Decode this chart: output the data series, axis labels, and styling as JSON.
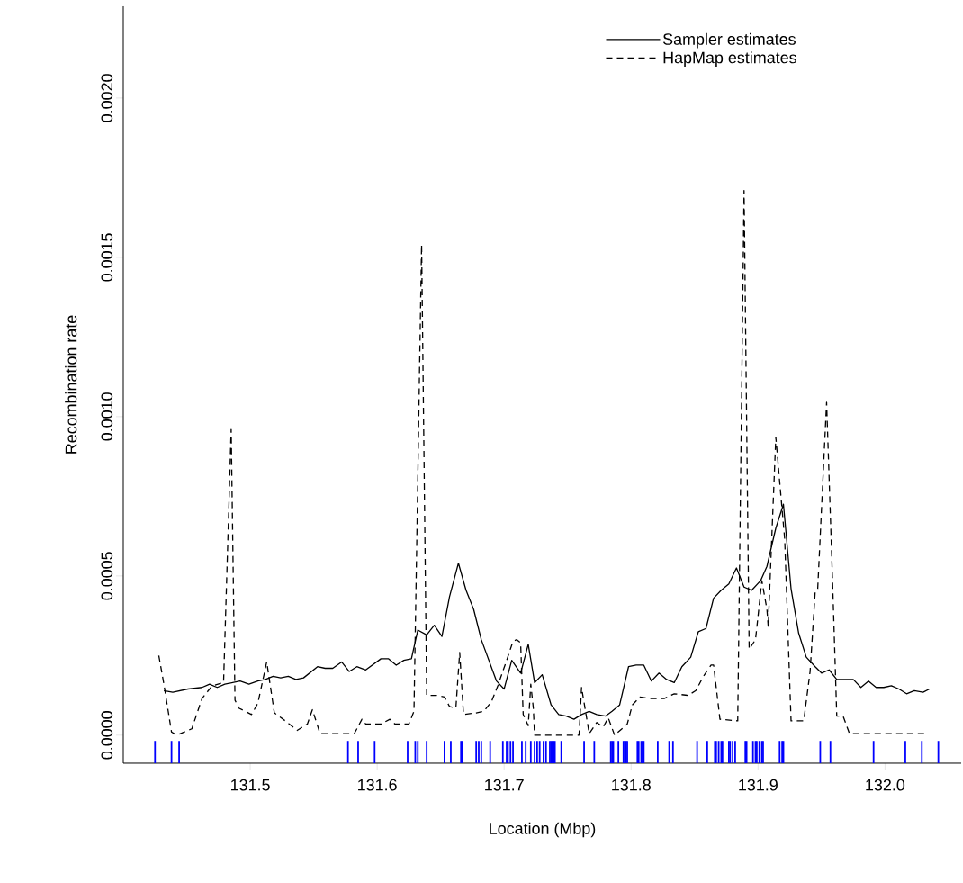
{
  "chart_data": {
    "type": "line",
    "xlabel": "Location (Mbp)",
    "ylabel": "Recombination rate",
    "xlim": [
      131.4,
      132.06
    ],
    "ylim": [
      -8.8e-05,
      0.002288
    ],
    "xticks": [
      131.5,
      131.6,
      131.7,
      131.8,
      131.9,
      {
        "value": 132.0,
        "label": "132.0"
      }
    ],
    "yticks": [
      {
        "value": 0,
        "label": "0.0000"
      },
      {
        "value": 0.0005,
        "label": "0.0005"
      },
      {
        "value": 0.001,
        "label": "0.0010"
      },
      {
        "value": 0.0015,
        "label": "0.0015"
      },
      {
        "value": 0.002,
        "label": "0.0020"
      }
    ],
    "legend": "top right",
    "marker": "none",
    "series": [
      {
        "name": "Sampler estimates",
        "line_style": "solid",
        "color": "#000000",
        "x": [
          131.432,
          131.439,
          131.451,
          131.462,
          131.468,
          131.474,
          131.48,
          131.492,
          131.499,
          131.506,
          131.512,
          131.518,
          131.524,
          131.53,
          131.536,
          131.542,
          131.553,
          131.559,
          131.565,
          131.572,
          131.578,
          131.584,
          131.591,
          131.603,
          131.609,
          131.615,
          131.621,
          131.627,
          131.632,
          131.639,
          131.645,
          131.651,
          131.657,
          131.664,
          131.67,
          131.676,
          131.682,
          131.688,
          131.694,
          131.7,
          131.706,
          131.713,
          131.719,
          131.724,
          131.73,
          131.737,
          131.743,
          131.749,
          131.755,
          131.761,
          131.767,
          131.773,
          131.78,
          131.785,
          131.791,
          131.798,
          131.804,
          131.81,
          131.816,
          131.822,
          131.828,
          131.834,
          131.84,
          131.847,
          131.853,
          131.859,
          131.865,
          131.871,
          131.877,
          131.883,
          131.889,
          131.895,
          131.902,
          131.907,
          131.914,
          131.92,
          131.926,
          131.932,
          131.938,
          131.945,
          131.95,
          131.956,
          131.962,
          131.969,
          131.975,
          131.981,
          131.987,
          131.993,
          131.999,
          132.005,
          132.011,
          132.017,
          132.023,
          132.03,
          132.035
        ],
        "values": [
          0.00014,
          0.000135,
          0.000145,
          0.00015,
          0.00016,
          0.00015,
          0.00016,
          0.00017,
          0.00016,
          0.00017,
          0.000175,
          0.000185,
          0.00018,
          0.000185,
          0.000175,
          0.00018,
          0.000215,
          0.00021,
          0.00021,
          0.00023,
          0.0002,
          0.000215,
          0.000205,
          0.00024,
          0.00024,
          0.00022,
          0.000235,
          0.00024,
          0.00033,
          0.000315,
          0.000345,
          0.00031,
          0.000435,
          0.00054,
          0.000455,
          0.000395,
          0.0003,
          0.000235,
          0.00017,
          0.000145,
          0.000235,
          0.000195,
          0.000285,
          0.000165,
          0.00019,
          9.5e-05,
          6.5e-05,
          6e-05,
          5e-05,
          6.5e-05,
          7.5e-05,
          6.5e-05,
          6e-05,
          7.5e-05,
          9.5e-05,
          0.000215,
          0.00022,
          0.00022,
          0.00017,
          0.000195,
          0.000175,
          0.000165,
          0.000215,
          0.000245,
          0.000325,
          0.000335,
          0.00043,
          0.000455,
          0.000475,
          0.000525,
          0.000465,
          0.000455,
          0.000485,
          0.00053,
          0.00065,
          0.000725,
          0.00046,
          0.00032,
          0.000245,
          0.000215,
          0.000195,
          0.000205,
          0.000175,
          0.000175,
          0.000175,
          0.00015,
          0.00017,
          0.00015,
          0.00015,
          0.000155,
          0.000145,
          0.00013,
          0.00014,
          0.000135,
          0.000145
        ]
      },
      {
        "name": "HapMap estimates",
        "line_style": "dashed",
        "color": "#000000",
        "x": [
          131.428,
          131.432,
          131.438,
          131.442,
          131.454,
          131.462,
          131.47,
          131.479,
          131.485,
          131.488,
          131.491,
          131.501,
          131.506,
          131.513,
          131.519,
          131.526,
          131.537,
          131.545,
          131.549,
          131.555,
          131.582,
          131.588,
          131.591,
          131.603,
          131.61,
          131.614,
          131.625,
          131.629,
          131.635,
          131.639,
          131.647,
          131.653,
          131.657,
          131.662,
          131.665,
          131.668,
          131.678,
          131.684,
          131.69,
          131.695,
          131.702,
          131.707,
          131.71,
          131.713,
          131.715,
          131.719,
          131.721,
          131.723,
          131.724,
          131.759,
          131.761,
          131.767,
          131.773,
          131.778,
          131.782,
          131.787,
          131.797,
          131.801,
          131.807,
          131.815,
          131.826,
          131.834,
          131.845,
          131.851,
          131.857,
          131.863,
          131.865,
          131.87,
          131.884,
          131.889,
          131.893,
          131.898,
          131.903,
          131.907,
          131.908,
          131.914,
          131.921,
          131.926,
          131.936,
          131.941,
          131.945,
          131.947,
          131.954,
          131.959,
          131.962,
          131.967,
          131.972,
          132.034
        ],
        "values": [
          0.00025,
          0.00016,
          1e-05,
          0,
          2e-05,
          0.000115,
          0.000155,
          0.000165,
          0.00096,
          0.00011,
          8.5e-05,
          6.5e-05,
          0.0001,
          0.00023,
          7e-05,
          5e-05,
          1.5e-05,
          3.5e-05,
          8e-05,
          5e-06,
          5e-06,
          5e-05,
          3.5e-05,
          3.5e-05,
          5e-05,
          3.5e-05,
          3.5e-05,
          7.5e-05,
          0.00154,
          0.000125,
          0.000125,
          0.00012,
          9e-05,
          8.5e-05,
          0.00026,
          6.5e-05,
          7e-05,
          7.5e-05,
          0.000105,
          0.000155,
          0.000235,
          0.000295,
          0.0003,
          0.00029,
          6.5e-05,
          3e-05,
          0.00016,
          8.5e-05,
          0,
          0,
          0.00015,
          5e-06,
          4e-05,
          2.5e-05,
          5.5e-05,
          0,
          3.5e-05,
          9.5e-05,
          0.00012,
          0.000115,
          0.000115,
          0.00013,
          0.000125,
          0.00014,
          0.000185,
          0.00022,
          0.00022,
          5e-05,
          4.5e-05,
          0.00171,
          0.00027,
          0.0003,
          0.000485,
          0.000395,
          0.00034,
          0.000935,
          0.000615,
          4.5e-05,
          4.5e-05,
          0.0002,
          0.00045,
          0.00046,
          0.001045,
          0.000445,
          6e-05,
          6e-05,
          5e-06,
          5e-06
        ]
      },
      {
        "type": "bar",
        "color": "#0000ff",
        "x": [
          131.425,
          131.438,
          131.444,
          131.577,
          131.585,
          131.598,
          131.624,
          131.63,
          131.632,
          131.639,
          131.653,
          131.658,
          131.666,
          131.667,
          131.678,
          131.68,
          131.682,
          131.689,
          131.699,
          131.702,
          131.703,
          131.705,
          131.707,
          131.714,
          131.717,
          131.721,
          131.724,
          131.726,
          131.728,
          131.731,
          131.733,
          131.736,
          131.737,
          131.738,
          131.739,
          131.74,
          131.745,
          131.763,
          131.771,
          131.784,
          131.785,
          131.786,
          131.79,
          131.794,
          131.795,
          131.796,
          131.797,
          131.805,
          131.806,
          131.808,
          131.809,
          131.81,
          131.821,
          131.83,
          131.833,
          131.852,
          131.86,
          131.866,
          131.867,
          131.869,
          131.871,
          131.872,
          131.877,
          131.878,
          131.88,
          131.882,
          131.89,
          131.891,
          131.896,
          131.898,
          131.899,
          131.901,
          131.903,
          131.904,
          131.917,
          131.919,
          131.92,
          131.949,
          131.957,
          131.991,
          132.016,
          132.029,
          132.042
        ],
        "base": [
          -8.8e-05,
          -8.8e-05,
          -8.8e-05,
          -8.8e-05,
          -8.8e-05,
          -8.8e-05,
          -8.8e-05,
          -8.8e-05,
          -8.8e-05,
          -8.8e-05,
          -8.8e-05,
          -8.8e-05,
          -8.8e-05,
          -8.8e-05,
          -8.8e-05,
          -8.8e-05,
          -8.8e-05,
          -8.8e-05,
          -8.8e-05,
          -8.8e-05,
          -8.8e-05,
          -8.8e-05,
          -8.8e-05,
          -8.8e-05,
          -8.8e-05,
          -8.8e-05,
          -8.8e-05,
          -8.8e-05,
          -8.8e-05,
          -8.8e-05,
          -8.8e-05,
          -8.8e-05,
          -8.8e-05,
          -8.8e-05,
          -8.8e-05,
          -8.8e-05,
          -8.8e-05,
          -8.8e-05,
          -8.8e-05,
          -8.8e-05,
          -8.8e-05,
          -8.8e-05,
          -8.8e-05,
          -8.8e-05,
          -8.8e-05,
          -8.8e-05,
          -8.8e-05,
          -8.8e-05,
          -8.8e-05,
          -8.8e-05,
          -8.8e-05,
          -8.8e-05,
          -8.8e-05,
          -8.8e-05,
          -8.8e-05,
          -8.8e-05,
          -8.8e-05,
          -8.8e-05,
          -8.8e-05,
          -8.8e-05,
          -8.8e-05,
          -8.8e-05,
          -8.8e-05,
          -8.8e-05,
          -8.8e-05,
          -8.8e-05,
          -8.8e-05,
          -8.8e-05,
          -8.8e-05,
          -8.8e-05,
          -8.8e-05,
          -8.8e-05,
          -8.8e-05,
          -8.8e-05,
          -8.8e-05,
          -8.8e-05,
          -8.8e-05,
          -8.8e-05,
          -8.8e-05,
          -8.8e-05,
          -8.8e-05,
          -8.8e-05,
          -8.8e-05
        ],
        "values": [
          7e-05,
          7e-05,
          7e-05,
          7e-05,
          7e-05,
          7e-05,
          7e-05,
          7e-05,
          7e-05,
          7e-05,
          7e-05,
          7e-05,
          7e-05,
          7e-05,
          7e-05,
          7e-05,
          7e-05,
          7e-05,
          7e-05,
          7e-05,
          7e-05,
          7e-05,
          7e-05,
          7e-05,
          7e-05,
          7e-05,
          7e-05,
          7e-05,
          7e-05,
          7e-05,
          7e-05,
          7e-05,
          7e-05,
          7e-05,
          7e-05,
          7e-05,
          7e-05,
          7e-05,
          7e-05,
          7e-05,
          7e-05,
          7e-05,
          7e-05,
          7e-05,
          7e-05,
          7e-05,
          7e-05,
          7e-05,
          7e-05,
          7e-05,
          7e-05,
          7e-05,
          7e-05,
          7e-05,
          7e-05,
          7e-05,
          7e-05,
          7e-05,
          7e-05,
          7e-05,
          7e-05,
          7e-05,
          7e-05,
          7e-05,
          7e-05,
          7e-05,
          7e-05,
          7e-05,
          7e-05,
          7e-05,
          7e-05,
          7e-05,
          7e-05,
          7e-05,
          7e-05,
          7e-05,
          7e-05,
          7e-05,
          7e-05,
          7e-05,
          7e-05,
          7e-05,
          7e-05
        ]
      }
    ]
  }
}
